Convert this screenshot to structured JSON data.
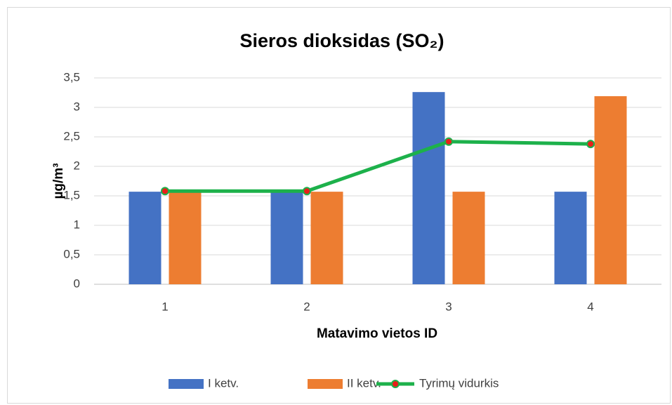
{
  "chart_data": {
    "type": "bar",
    "title": "Sieros dioksidas (SO₂)",
    "ylabel": "µg/m³",
    "xlabel": "Matavimo vietos ID",
    "categories": [
      "1",
      "2",
      "3",
      "4"
    ],
    "series": [
      {
        "name": "I ketv.",
        "type": "bar",
        "color": "#4472c4",
        "values": [
          1.57,
          1.57,
          3.26,
          1.57
        ]
      },
      {
        "name": "II ketv.",
        "type": "bar",
        "color": "#ed7d31",
        "values": [
          1.57,
          1.57,
          1.57,
          3.19
        ]
      },
      {
        "name": "Tyrimų vidurkis",
        "type": "line",
        "color": "#1db14b",
        "marker_color": "#e8201a",
        "values": [
          1.58,
          1.58,
          2.42,
          2.38
        ]
      }
    ],
    "ylim": [
      0,
      3.5
    ],
    "yticks": [
      0,
      {
        "value": 0.5,
        "label": "0,5"
      },
      1,
      {
        "value": 1.5,
        "label": "1,5"
      },
      2,
      {
        "value": 2.5,
        "label": "2,5"
      },
      3,
      {
        "value": 3.5,
        "label": "3,5"
      }
    ],
    "grid": true,
    "legend": "bottom"
  }
}
